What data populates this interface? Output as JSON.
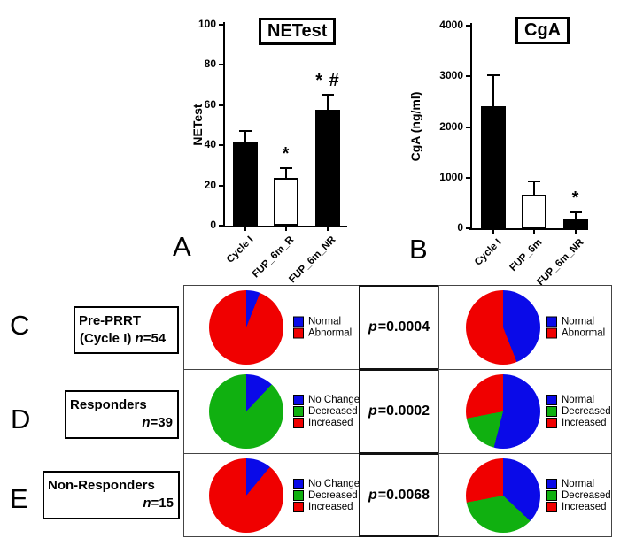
{
  "panels": {
    "A": {
      "letter": "A"
    },
    "B": {
      "letter": "B"
    }
  },
  "chart_data": [
    {
      "id": "netest_bar",
      "type": "bar",
      "panel": "A",
      "title": "NETest",
      "xlabel": "",
      "ylabel": "NETest",
      "ylim": [
        0,
        100
      ],
      "yticks": [
        0,
        20,
        40,
        60,
        80,
        100
      ],
      "categories": [
        "Cycle I",
        "FUP_6m_R",
        "FUP_6m_NR"
      ],
      "values": [
        42,
        24,
        57.5
      ],
      "errors": [
        5,
        4.6,
        7.5
      ],
      "bar_colors": [
        "#000000",
        "#ffffff",
        "#000000"
      ],
      "annotations": [
        "",
        "*",
        "* #"
      ]
    },
    {
      "id": "cga_bar",
      "type": "bar",
      "panel": "B",
      "title": "CgA",
      "xlabel": "",
      "ylabel": "CgA (ng/ml)",
      "ylim": [
        0,
        4000
      ],
      "yticks": [
        0,
        1000,
        2000,
        3000,
        4000
      ],
      "categories": [
        "Cycle I",
        "FUP_6m",
        "FUP_6m_NR"
      ],
      "values": [
        2410,
        660,
        180
      ],
      "errors": [
        620,
        260,
        130
      ],
      "bar_colors": [
        "#000000",
        "#ffffff",
        "#000000"
      ],
      "annotations": [
        "",
        "",
        "*"
      ]
    },
    {
      "id": "pie_pre_prrt_netest",
      "type": "pie",
      "panel": "C",
      "position": "left",
      "slices": [
        {
          "label": "Normal",
          "color": "#0a0ae8",
          "pct": 6
        },
        {
          "label": "Abnormal",
          "color": "#f00000",
          "pct": 94
        }
      ]
    },
    {
      "id": "pie_pre_prrt_cga",
      "type": "pie",
      "panel": "C",
      "position": "right",
      "slices": [
        {
          "label": "Normal",
          "color": "#0a0ae8",
          "pct": 44
        },
        {
          "label": "Abnormal",
          "color": "#f00000",
          "pct": 56
        }
      ]
    },
    {
      "id": "pie_responders_netest",
      "type": "pie",
      "panel": "D",
      "position": "left",
      "slices": [
        {
          "label": "No Change",
          "color": "#0a0ae8",
          "pct": 12
        },
        {
          "label": "Decreased",
          "color": "#10b010",
          "pct": 88
        },
        {
          "label": "Increased",
          "color": "#f00000",
          "pct": 0
        }
      ]
    },
    {
      "id": "pie_responders_cga",
      "type": "pie",
      "panel": "D",
      "position": "right",
      "slices": [
        {
          "label": "Normal",
          "color": "#0a0ae8",
          "pct": 54
        },
        {
          "label": "Decreased",
          "color": "#10b010",
          "pct": 18
        },
        {
          "label": "Increased",
          "color": "#f00000",
          "pct": 28
        }
      ]
    },
    {
      "id": "pie_nonresponders_netest",
      "type": "pie",
      "panel": "E",
      "position": "left",
      "slices": [
        {
          "label": "No Change",
          "color": "#0a0ae8",
          "pct": 11
        },
        {
          "label": "Decreased",
          "color": "#10b010",
          "pct": 0
        },
        {
          "label": "Increased",
          "color": "#f00000",
          "pct": 89
        }
      ]
    },
    {
      "id": "pie_nonresponders_cga",
      "type": "pie",
      "panel": "E",
      "position": "right",
      "slices": [
        {
          "label": "Normal",
          "color": "#0a0ae8",
          "pct": 37
        },
        {
          "label": "Decreased",
          "color": "#10b010",
          "pct": 35
        },
        {
          "label": "Increased",
          "color": "#f00000",
          "pct": 28
        }
      ]
    }
  ],
  "table": {
    "rows": [
      {
        "letter": "C",
        "label": {
          "line1": "Pre-PRRT",
          "line2_prefix": "(Cycle I) ",
          "n_symbol": "n",
          "n_suffix": "=54"
        },
        "p": {
          "symbol": "p",
          "value": "=0.0004"
        }
      },
      {
        "letter": "D",
        "label": {
          "line1": "Responders",
          "line2_prefix": "",
          "n_symbol": "n",
          "n_suffix": "=39"
        },
        "p": {
          "symbol": "p",
          "value": "=0.0002"
        }
      },
      {
        "letter": "E",
        "label": {
          "line1": "Non-Responders",
          "line2_prefix": "",
          "n_symbol": "n",
          "n_suffix": "=15"
        },
        "p": {
          "symbol": "p",
          "value": "=0.0068"
        }
      }
    ]
  },
  "colors": {
    "normal_blue": "#0a0ae8",
    "abnormal_red": "#f00000",
    "decreased_green": "#10b010",
    "bar_black": "#000000"
  }
}
